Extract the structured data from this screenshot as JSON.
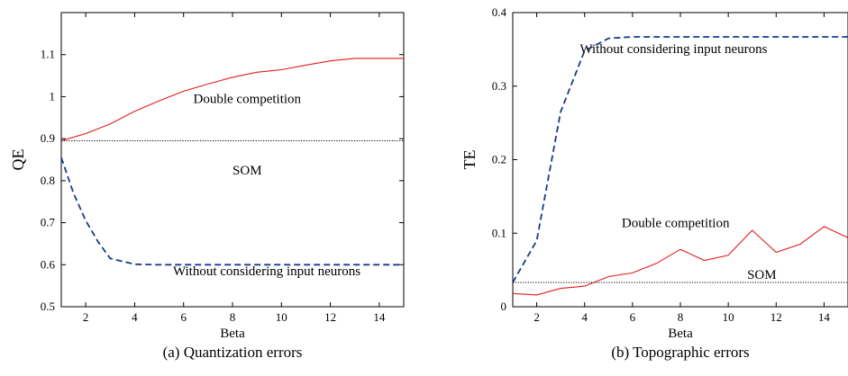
{
  "chart_data": [
    {
      "type": "line",
      "caption": "(a) Quantization errors",
      "xlabel": "Beta",
      "ylabel": "QE",
      "xlim": [
        1,
        15
      ],
      "ylim": [
        0.5,
        1.2
      ],
      "xticks": [
        2,
        4,
        6,
        8,
        10,
        12,
        14
      ],
      "yticks": [
        0.5,
        0.6,
        0.7,
        0.8,
        0.9,
        1,
        1.1
      ],
      "ytick_labels": [
        "0.5",
        "0.6",
        "0.7",
        "0.8",
        "0.9",
        "1",
        "1.1"
      ],
      "grid": false,
      "series": [
        {
          "name": "Double competition",
          "color": "#e31b1b",
          "style": "solid",
          "x": [
            1,
            2,
            3,
            4,
            5,
            6,
            7,
            8,
            9,
            10,
            11,
            12,
            13,
            14,
            15
          ],
          "y": [
            0.895,
            0.912,
            0.935,
            0.965,
            0.99,
            1.013,
            1.03,
            1.046,
            1.058,
            1.064,
            1.075,
            1.085,
            1.091,
            1.091,
            1.091
          ]
        },
        {
          "name": "SOM",
          "color": "#000000",
          "style": "dotted",
          "x": [
            1,
            15
          ],
          "y": [
            0.895,
            0.895
          ]
        },
        {
          "name": "Without considering input neurons",
          "color": "#1a3a8c",
          "style": "dashed",
          "x": [
            1,
            1.5,
            2,
            2.5,
            3,
            4,
            5,
            6,
            7,
            8,
            9,
            10,
            11,
            12,
            13,
            14,
            15
          ],
          "y": [
            0.855,
            0.77,
            0.705,
            0.655,
            0.615,
            0.601,
            0.6,
            0.6,
            0.6,
            0.6,
            0.6,
            0.6,
            0.6,
            0.6,
            0.6,
            0.6,
            0.6
          ]
        }
      ],
      "annotations": [
        {
          "text": "Double competition",
          "x": 8.6,
          "y": 0.985
        },
        {
          "text": "SOM",
          "x": 8.6,
          "y": 0.815
        },
        {
          "text": "Without considering input neurons",
          "x": 9.4,
          "y": 0.575
        }
      ]
    },
    {
      "type": "line",
      "caption": "(b) Topographic errors",
      "xlabel": "Beta",
      "ylabel": "TE",
      "xlim": [
        1,
        15
      ],
      "ylim": [
        0,
        0.4
      ],
      "xticks": [
        2,
        4,
        6,
        8,
        10,
        12,
        14
      ],
      "yticks": [
        0,
        0.1,
        0.2,
        0.3,
        0.4
      ],
      "ytick_labels": [
        "0",
        "0.1",
        "0.2",
        "0.3",
        "0.4"
      ],
      "grid": false,
      "series": [
        {
          "name": "Without considering input neurons",
          "color": "#1a3a8c",
          "style": "dashed",
          "x": [
            1,
            2,
            3,
            4,
            5,
            6,
            7,
            8,
            9,
            10,
            11,
            12,
            13,
            14,
            15
          ],
          "y": [
            0.033,
            0.09,
            0.265,
            0.348,
            0.365,
            0.367,
            0.367,
            0.367,
            0.367,
            0.367,
            0.367,
            0.367,
            0.367,
            0.367,
            0.367
          ]
        },
        {
          "name": "Double competition",
          "color": "#e31b1b",
          "style": "solid",
          "x": [
            1,
            2,
            3,
            4,
            5,
            6,
            7,
            8,
            9,
            10,
            11,
            12,
            13,
            14,
            15
          ],
          "y": [
            0.018,
            0.016,
            0.025,
            0.028,
            0.041,
            0.046,
            0.059,
            0.078,
            0.063,
            0.07,
            0.104,
            0.074,
            0.085,
            0.109,
            0.094
          ]
        },
        {
          "name": "SOM",
          "color": "#000000",
          "style": "dotted",
          "x": [
            1,
            15
          ],
          "y": [
            0.033,
            0.033
          ]
        }
      ],
      "annotations": [
        {
          "text": "Without considering input neurons",
          "x": 3.8,
          "y": 0.345,
          "anchor": "start"
        },
        {
          "text": "Double competition",
          "x": 7.8,
          "y": 0.108
        },
        {
          "text": "SOM",
          "x": 11.4,
          "y": 0.038
        }
      ]
    }
  ]
}
